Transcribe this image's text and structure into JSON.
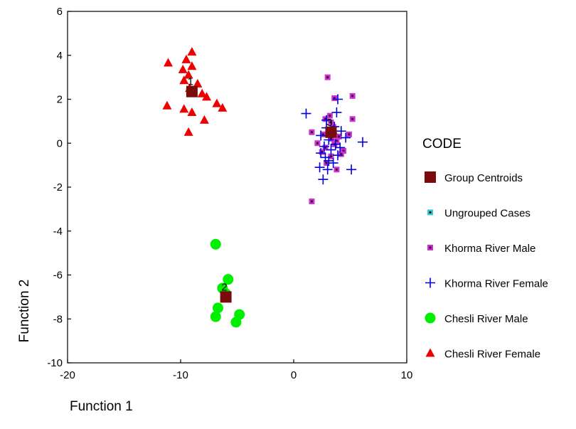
{
  "chart_data": {
    "type": "scatter",
    "xlabel": "Function 1",
    "ylabel": "Function 2",
    "xlim": [
      -20,
      10
    ],
    "ylim": [
      -10,
      6
    ],
    "xticks": [
      "-20",
      "-10",
      "0",
      "10"
    ],
    "yticks": [
      "-10",
      "-8",
      "-6",
      "-4",
      "-2",
      "0",
      "2",
      "4",
      "6"
    ],
    "grid": false,
    "legend": {
      "title": "CODE",
      "placement": "right",
      "entries": [
        {
          "label": "Group Centroids",
          "marker": "square-large",
          "color": "#7b0a0a"
        },
        {
          "label": "Ungrouped Cases",
          "marker": "square-small",
          "color": "#33cccc"
        },
        {
          "label": "Khorma River Male",
          "marker": "square-small",
          "color": "#cc33cc"
        },
        {
          "label": "Khorma River Female",
          "marker": "plus",
          "color": "#0000dd"
        },
        {
          "label": "Chesli River Male",
          "marker": "circle",
          "color": "#00ee00"
        },
        {
          "label": "Chesli River Female",
          "marker": "triangle",
          "color": "#ee0000"
        }
      ]
    },
    "series": [
      {
        "name": "Khorma River Male",
        "marker": "square-small",
        "color": "#cc33cc",
        "points": [
          [
            3.0,
            3.0
          ],
          [
            3.6,
            2.05
          ],
          [
            5.2,
            2.15
          ],
          [
            3.2,
            1.25
          ],
          [
            2.8,
            1.1
          ],
          [
            5.2,
            1.1
          ],
          [
            3.3,
            0.95
          ],
          [
            1.6,
            0.5
          ],
          [
            2.6,
            0.4
          ],
          [
            3.1,
            0.55
          ],
          [
            4.9,
            0.4
          ],
          [
            2.1,
            0.0
          ],
          [
            3.3,
            0.2
          ],
          [
            3.8,
            0.1
          ],
          [
            2.8,
            -0.2
          ],
          [
            3.6,
            -0.05
          ],
          [
            4.4,
            -0.35
          ],
          [
            2.5,
            -0.4
          ],
          [
            3.3,
            -0.6
          ],
          [
            4.2,
            -0.5
          ],
          [
            2.9,
            -0.9
          ],
          [
            3.8,
            -1.2
          ],
          [
            1.6,
            -2.65
          ],
          [
            3.5,
            0.75
          ],
          [
            4.0,
            0.3
          ]
        ]
      },
      {
        "name": "Khorma River Female",
        "marker": "plus",
        "color": "#0000dd",
        "points": [
          [
            1.1,
            1.35
          ],
          [
            3.9,
            2.0
          ],
          [
            3.8,
            1.4
          ],
          [
            2.9,
            1.05
          ],
          [
            3.6,
            0.75
          ],
          [
            4.2,
            0.55
          ],
          [
            3.4,
            0.45
          ],
          [
            2.4,
            0.35
          ],
          [
            3.1,
            0.15
          ],
          [
            4.6,
            0.25
          ],
          [
            6.1,
            0.05
          ],
          [
            3.7,
            -0.05
          ],
          [
            2.7,
            -0.15
          ],
          [
            3.3,
            -0.3
          ],
          [
            2.4,
            -0.45
          ],
          [
            3.9,
            -0.55
          ],
          [
            2.8,
            -0.65
          ],
          [
            3.1,
            -0.8
          ],
          [
            2.3,
            -1.1
          ],
          [
            3.0,
            -1.2
          ],
          [
            5.1,
            -1.2
          ],
          [
            2.6,
            -1.65
          ],
          [
            3.5,
            -0.9
          ],
          [
            4.1,
            -0.2
          ],
          [
            2.9,
            0.7
          ]
        ]
      },
      {
        "name": "Chesli River Male",
        "marker": "circle",
        "color": "#00ee00",
        "points": [
          [
            -6.9,
            -4.6
          ],
          [
            -5.8,
            -6.2
          ],
          [
            -6.3,
            -6.6
          ],
          [
            -6.0,
            -6.85
          ],
          [
            -6.7,
            -7.5
          ],
          [
            -4.8,
            -7.8
          ],
          [
            -6.9,
            -7.9
          ],
          [
            -5.1,
            -8.15
          ]
        ]
      },
      {
        "name": "Chesli River Female",
        "marker": "triangle",
        "color": "#ee0000",
        "points": [
          [
            -9.0,
            4.15
          ],
          [
            -9.5,
            3.8
          ],
          [
            -11.1,
            3.65
          ],
          [
            -9.0,
            3.5
          ],
          [
            -9.8,
            3.35
          ],
          [
            -9.3,
            3.1
          ],
          [
            -9.7,
            2.85
          ],
          [
            -8.5,
            2.7
          ],
          [
            -9.2,
            2.5
          ],
          [
            -8.1,
            2.25
          ],
          [
            -7.7,
            2.1
          ],
          [
            -6.8,
            1.8
          ],
          [
            -11.2,
            1.7
          ],
          [
            -6.3,
            1.6
          ],
          [
            -9.7,
            1.55
          ],
          [
            -9.0,
            1.4
          ],
          [
            -7.9,
            1.05
          ],
          [
            -9.3,
            0.5
          ]
        ]
      },
      {
        "name": "Group Centroids",
        "marker": "square-large",
        "color": "#7b0a0a",
        "points": [
          [
            -9.0,
            2.35
          ],
          [
            -6.0,
            -7.0
          ],
          [
            3.3,
            0.5
          ]
        ],
        "labels": [
          "1",
          "2",
          "3"
        ]
      }
    ]
  }
}
